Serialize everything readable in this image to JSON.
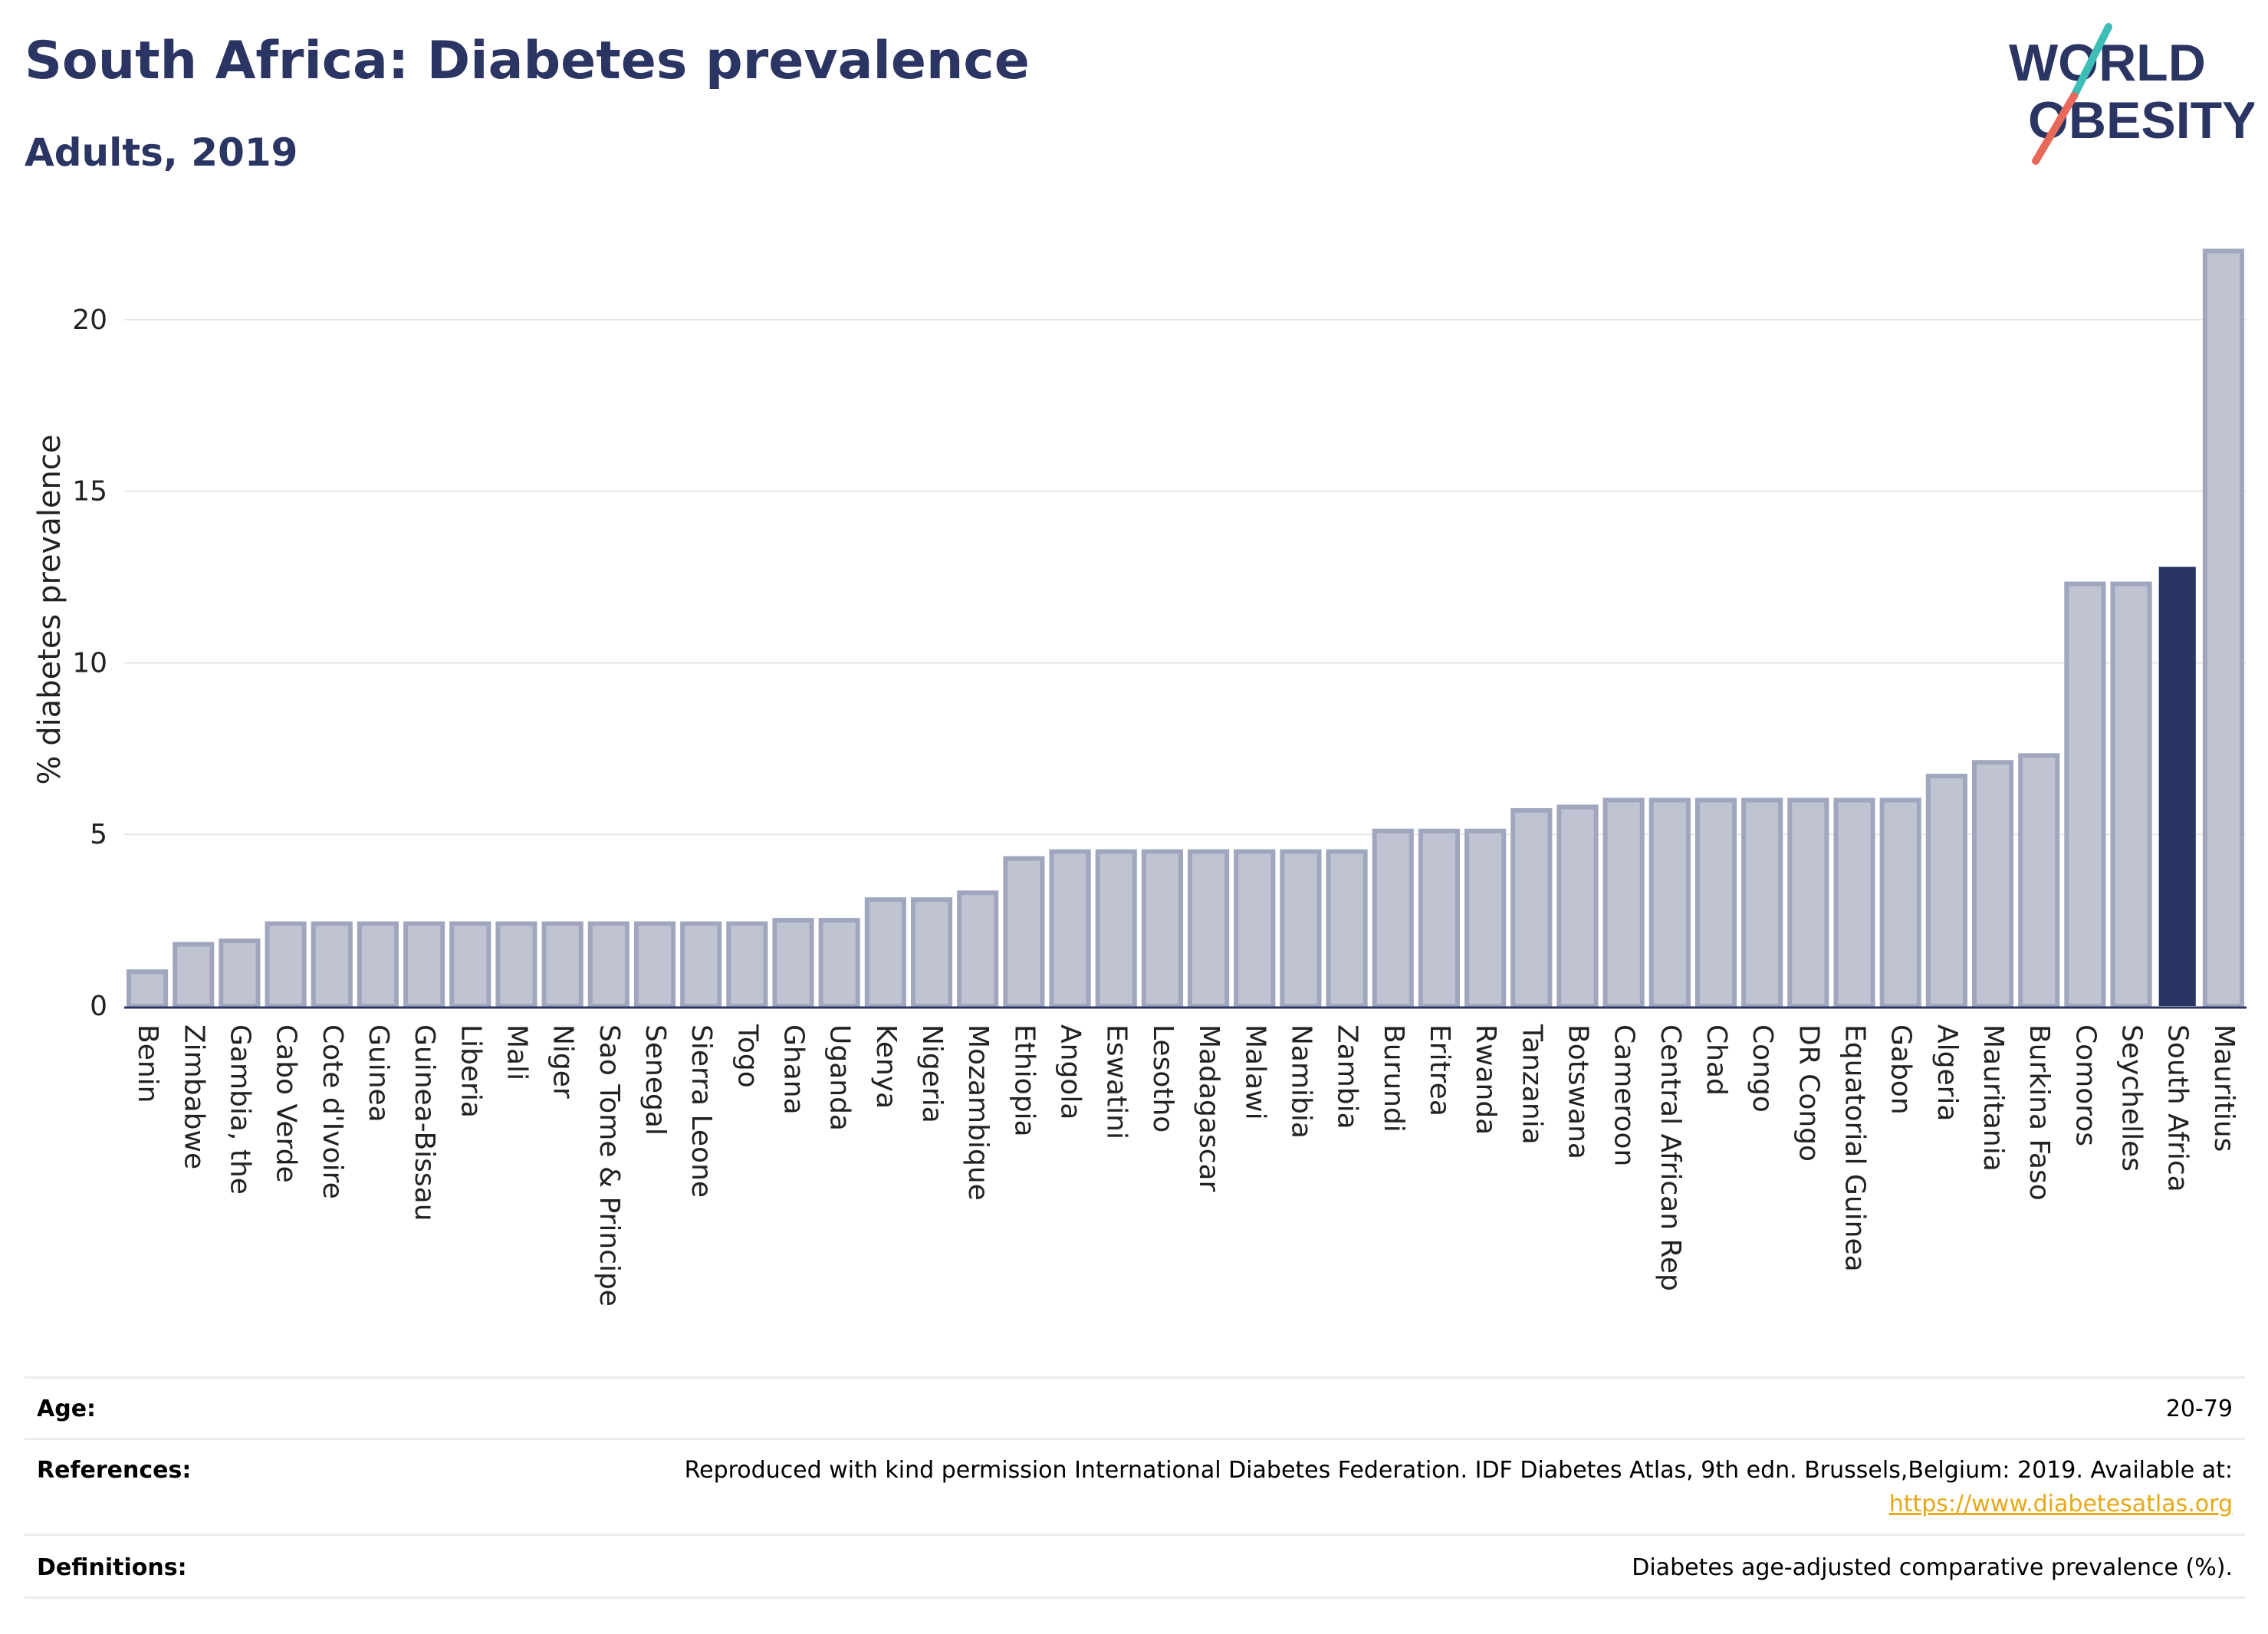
{
  "header": {
    "title": "South Africa: Diabetes prevalence",
    "subtitle": "Adults, 2019"
  },
  "logo": {
    "line1": "WORLD",
    "line2": "OBESITY",
    "colors": {
      "text": "#2b3563",
      "slash_top": "#3dbfb8",
      "slash_bottom": "#e8695a"
    }
  },
  "colors": {
    "bar": "#c0c4d2",
    "bar_stroke": "#a0a6bd",
    "highlight": "#2b3563",
    "grid": "#e6e6e6",
    "axis": "#2b3563"
  },
  "chart_data": {
    "type": "bar",
    "ylabel": "% diabetes prevalence",
    "xlabel": "",
    "ylim": [
      0,
      22.5
    ],
    "yticks": [
      0,
      5,
      10,
      15,
      20
    ],
    "grid": true,
    "highlight": "South Africa",
    "categories": [
      "Benin",
      "Zimbabwe",
      "Gambia, the",
      "Cabo Verde",
      "Cote d'Ivoire",
      "Guinea",
      "Guinea-Bissau",
      "Liberia",
      "Mali",
      "Niger",
      "Sao Tome & Principe",
      "Senegal",
      "Sierra Leone",
      "Togo",
      "Ghana",
      "Uganda",
      "Kenya",
      "Nigeria",
      "Mozambique",
      "Ethiopia",
      "Angola",
      "Eswatini",
      "Lesotho",
      "Madagascar",
      "Malawi",
      "Namibia",
      "Zambia",
      "Burundi",
      "Eritrea",
      "Rwanda",
      "Tanzania",
      "Botswana",
      "Cameroon",
      "Central African Rep",
      "Chad",
      "Congo",
      "DR Congo",
      "Equatorial Guinea",
      "Gabon",
      "Algeria",
      "Mauritania",
      "Burkina Faso",
      "Comoros",
      "Seychelles",
      "South Africa",
      "Mauritius"
    ],
    "values": [
      1.0,
      1.8,
      1.9,
      2.4,
      2.4,
      2.4,
      2.4,
      2.4,
      2.4,
      2.4,
      2.4,
      2.4,
      2.4,
      2.4,
      2.5,
      2.5,
      3.1,
      3.1,
      3.3,
      4.3,
      4.5,
      4.5,
      4.5,
      4.5,
      4.5,
      4.5,
      4.5,
      5.1,
      5.1,
      5.1,
      5.7,
      5.8,
      6.0,
      6.0,
      6.0,
      6.0,
      6.0,
      6.0,
      6.0,
      6.7,
      7.1,
      7.3,
      12.3,
      12.3,
      12.8,
      22.0
    ]
  },
  "info": {
    "age_label": "Age:",
    "age_value": "20-79",
    "references_label": "References:",
    "references_text": "Reproduced with kind permission International Diabetes Federation. IDF Diabetes Atlas, 9th edn. Brussels,Belgium: 2019. Available at:",
    "references_link": "https://www.diabetesatlas.org",
    "definitions_label": "Definitions:",
    "definitions_text": "Diabetes age-adjusted comparative prevalence (%)."
  }
}
